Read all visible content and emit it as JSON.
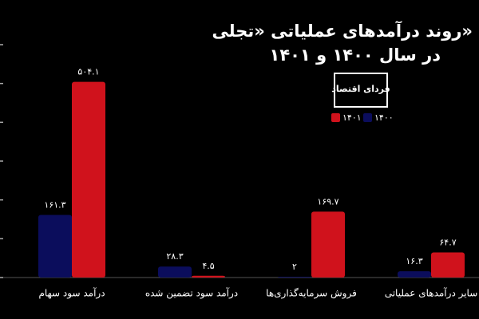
{
  "chart_data": {
    "type": "bar",
    "title": [
      "روند درآمدهای عملیاتی «تجلی»",
      "در سال ۱۴۰۰ و ۱۴۰۱"
    ],
    "logo": "فردای اقتصاد",
    "categories": [
      "درآمد سود سهام",
      "درآمد سود تضمین شده",
      "فروش سرمایه‌گذاری‌ها",
      "سایر درآمدهای عملیاتی"
    ],
    "series": [
      {
        "name": "۱۴۰۰",
        "color": "#0b0d5c",
        "values": [
          161.3,
          28.3,
          2,
          16.3
        ],
        "value_labels": [
          "۱۶۱.۳",
          "۲۸.۳",
          "۲",
          "۱۶.۳"
        ]
      },
      {
        "name": "۱۴۰۱",
        "color": "#d0121c",
        "values": [
          504.1,
          4.5,
          169.7,
          64.7
        ],
        "value_labels": [
          "۵۰۴.۱",
          "۴.۵",
          "۱۶۹.۷",
          "۶۴.۷"
        ]
      }
    ],
    "ylim": [
      0,
      600
    ],
    "yticks": [
      0,
      100,
      200,
      300,
      400,
      500,
      600
    ]
  }
}
